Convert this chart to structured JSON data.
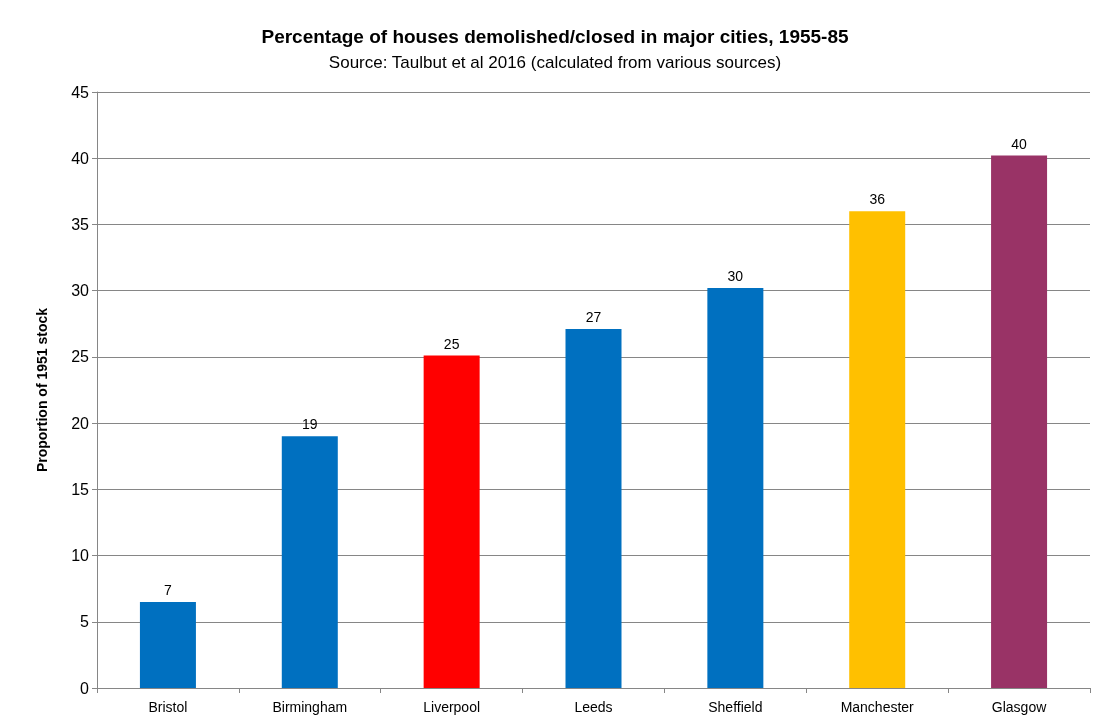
{
  "chart_data": {
    "type": "bar",
    "title": "Percentage of houses demolished/closed in major cities, 1955-85",
    "subtitle": "Source: Taulbut et al 2016 (calculated from various sources)",
    "ylabel": "Proportion of 1951 stock",
    "categories": [
      "Bristol",
      "Birmingham",
      "Liverpool",
      "Leeds",
      "Sheffield",
      "Manchester",
      "Glasgow"
    ],
    "values": [
      6.5,
      19,
      25.1,
      27.1,
      30.2,
      36,
      40.2
    ],
    "value_labels": [
      "7",
      "19",
      "25",
      "27",
      "30",
      "36",
      "40"
    ],
    "colors": [
      "#0070c0",
      "#0070c0",
      "#ff0000",
      "#0070c0",
      "#0070c0",
      "#ffc000",
      "#993366"
    ],
    "ylim": [
      0,
      45
    ],
    "yticks": [
      0,
      5,
      10,
      15,
      20,
      25,
      30,
      35,
      40,
      45
    ],
    "grid": "y"
  }
}
